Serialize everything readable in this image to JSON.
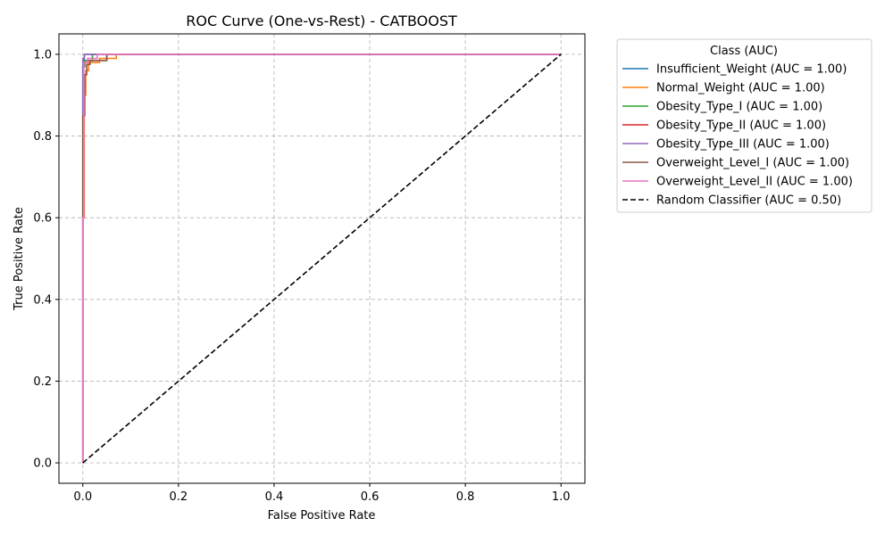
{
  "chart_data": {
    "type": "line",
    "title": "ROC Curve (One-vs-Rest) - CATBOOST",
    "xlabel": "False Positive Rate",
    "ylabel": "True Positive Rate",
    "xlim": [
      -0.05,
      1.05
    ],
    "ylim": [
      -0.05,
      1.05
    ],
    "xticks": [
      "0.0",
      "0.2",
      "0.4",
      "0.6",
      "0.8",
      "1.0"
    ],
    "yticks": [
      "0.0",
      "0.2",
      "0.4",
      "0.6",
      "0.8",
      "1.0"
    ],
    "grid": true,
    "legend_title": "Class (AUC)",
    "legend_position": "outside-right",
    "series": [
      {
        "name": "Insufficient_Weight (AUC = 1.00)",
        "color": "#1f77b4",
        "dashed": false,
        "x": [
          0,
          0,
          0.003,
          0.003,
          1
        ],
        "y": [
          0,
          0.97,
          0.97,
          1,
          1
        ]
      },
      {
        "name": "Normal_Weight (AUC = 1.00)",
        "color": "#ff7f0e",
        "dashed": false,
        "x": [
          0,
          0,
          0.003,
          0.003,
          0.006,
          0.006,
          0.012,
          0.012,
          0.035,
          0.035,
          0.07,
          0.07,
          1
        ],
        "y": [
          0,
          0.6,
          0.6,
          0.9,
          0.9,
          0.96,
          0.96,
          0.98,
          0.98,
          0.99,
          0.99,
          1,
          1
        ]
      },
      {
        "name": "Obesity_Type_I (AUC = 1.00)",
        "color": "#2ca02c",
        "dashed": false,
        "x": [
          0,
          0,
          0.004,
          0.004,
          0.02,
          0.02,
          1
        ],
        "y": [
          0,
          0.97,
          0.97,
          0.985,
          0.985,
          1,
          1
        ]
      },
      {
        "name": "Obesity_Type_II (AUC = 1.00)",
        "color": "#d62728",
        "dashed": false,
        "x": [
          0,
          0,
          0.002,
          0.002,
          0.01,
          0.01,
          0.05,
          0.05,
          1
        ],
        "y": [
          0,
          0.97,
          0.97,
          0.98,
          0.98,
          0.985,
          0.985,
          1,
          1
        ]
      },
      {
        "name": "Obesity_Type_III (AUC = 1.00)",
        "color": "#9467bd",
        "dashed": false,
        "x": [
          0,
          0,
          0.003,
          0.003,
          1
        ],
        "y": [
          0,
          0.99,
          0.99,
          1,
          1
        ]
      },
      {
        "name": "Overweight_Level_I (AUC = 1.00)",
        "color": "#8c564b",
        "dashed": false,
        "x": [
          0,
          0,
          0.004,
          0.004,
          0.008,
          0.008,
          0.015,
          0.015,
          0.05,
          0.05,
          1
        ],
        "y": [
          0,
          0.85,
          0.85,
          0.95,
          0.95,
          0.975,
          0.975,
          0.985,
          0.985,
          1,
          1
        ]
      },
      {
        "name": "Overweight_Level_II (AUC = 1.00)",
        "color": "#e377c2",
        "dashed": false,
        "x": [
          0,
          0,
          0.002,
          0.002,
          0.01,
          0.01,
          0.03,
          0.03,
          1
        ],
        "y": [
          0,
          0.6,
          0.6,
          0.98,
          0.98,
          0.99,
          0.99,
          1,
          1
        ]
      },
      {
        "name": "Random Classifier (AUC = 0.50)",
        "color": "#000000",
        "dashed": true,
        "x": [
          0,
          1
        ],
        "y": [
          0,
          1
        ]
      }
    ]
  }
}
